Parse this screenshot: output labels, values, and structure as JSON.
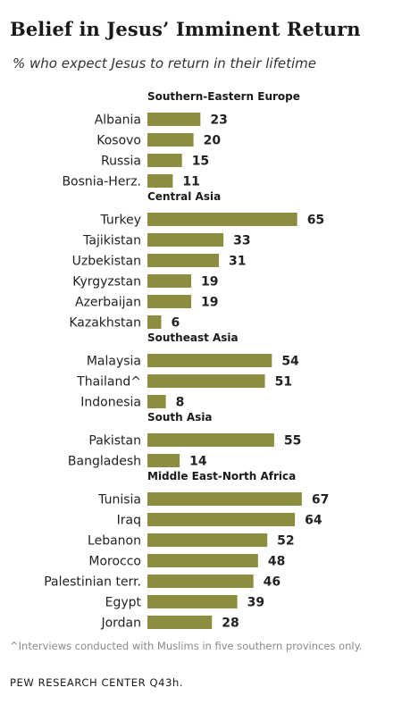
{
  "title": "Belief in Jesus’ Imminent Return",
  "subtitle": "% who expect Jesus to return in their lifetime",
  "footnote": "^Interviews conducted with Muslims in five southern provinces only.",
  "source": "PEW RESEARCH CENTER Q43h.",
  "colors": {
    "bar": "#8d8d3f"
  },
  "chart_data": {
    "type": "bar",
    "orientation": "horizontal",
    "xlim": [
      0,
      70
    ],
    "grid": false,
    "groups": [
      {
        "name": "Southern-Eastern  Europe",
        "categories": [
          "Albania",
          "Kosovo",
          "Russia",
          "Bosnia-Herz."
        ],
        "values": [
          23,
          20,
          15,
          11
        ]
      },
      {
        "name": "Central Asia",
        "categories": [
          "Turkey",
          "Tajikistan",
          "Uzbekistan",
          "Kyrgyzstan",
          "Azerbaijan",
          "Kazakhstan"
        ],
        "values": [
          65,
          33,
          31,
          19,
          19,
          6
        ]
      },
      {
        "name": "Southeast Asia",
        "categories": [
          "Malaysia",
          "Thailand^",
          "Indonesia"
        ],
        "values": [
          54,
          51,
          8
        ]
      },
      {
        "name": "South Asia",
        "categories": [
          "Pakistan",
          "Bangladesh"
        ],
        "values": [
          55,
          14
        ]
      },
      {
        "name": "Middle East-North Africa",
        "categories": [
          "Tunisia",
          "Iraq",
          "Lebanon",
          "Morocco",
          "Palestinian terr.",
          "Egypt",
          "Jordan"
        ],
        "values": [
          67,
          64,
          52,
          48,
          46,
          39,
          28
        ]
      }
    ]
  }
}
